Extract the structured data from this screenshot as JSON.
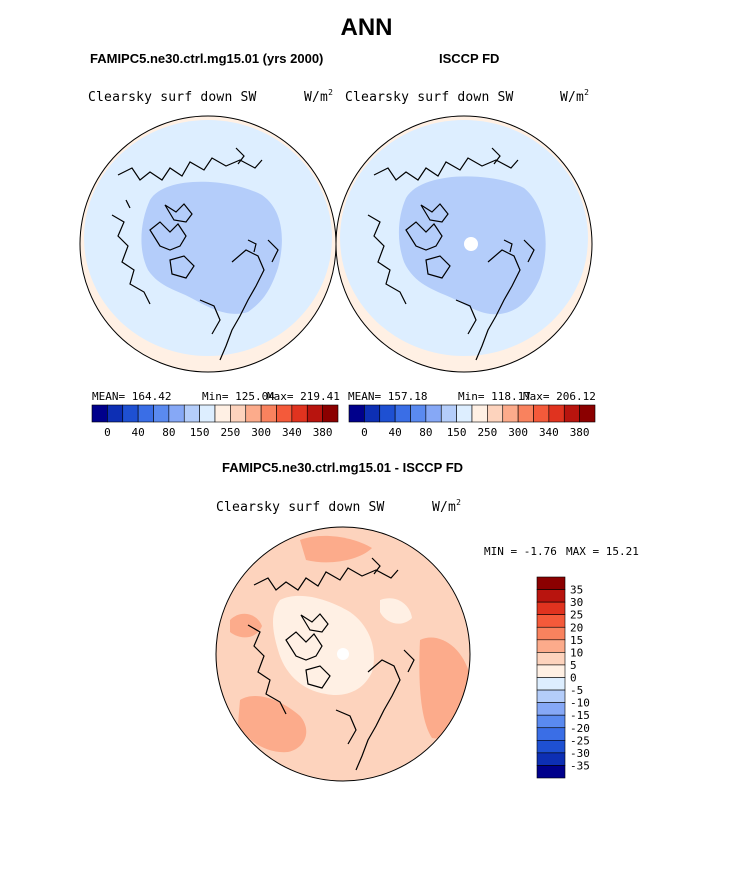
{
  "page": {
    "title": "ANN",
    "diff_title": "FAMIPC5.ne30.ctrl.mg15.01 - ISCCP FD"
  },
  "chart_data": [
    {
      "type": "heatmap",
      "title": "FAMIPC5.ne30.ctrl.mg15.01 (yrs 2000)",
      "variable": "Clearsky surf down SW",
      "units": "W/m",
      "units_exp": "2",
      "projection": "north-polar-stereographic",
      "stats": {
        "mean_label": "MEAN=",
        "mean": "164.42",
        "min_label": "Min=",
        "min": "125.04",
        "max_label": "Max=",
        "max": "219.41"
      },
      "colorbar": {
        "colors": [
          "#00008b",
          "#0d2fb4",
          "#1e50d2",
          "#3a6ee6",
          "#5a8af0",
          "#86a8f6",
          "#b4cdfa",
          "#ddeeff",
          "#fff0e4",
          "#fdd3bd",
          "#fcab8b",
          "#f9825e",
          "#f45a3a",
          "#e0331f",
          "#b8140e",
          "#8b0000"
        ],
        "tick_labels": [
          "0",
          "40",
          "80",
          "150",
          "250",
          "300",
          "340",
          "380"
        ]
      },
      "dominant_fields": [
        {
          "range": "150-250",
          "color": "#ddeeff",
          "region": "mid-latitudes"
        },
        {
          "range": "80-150",
          "color": "#b4cdfa",
          "region": "central Arctic"
        },
        {
          "range": "250-300",
          "color": "#fff0e4",
          "region": "southern rim"
        }
      ]
    },
    {
      "type": "heatmap",
      "title": "ISCCP FD",
      "variable": "Clearsky surf down SW",
      "units": "W/m",
      "units_exp": "2",
      "projection": "north-polar-stereographic",
      "stats": {
        "mean_label": "MEAN=",
        "mean": "157.18",
        "min_label": "Min=",
        "min": "118.17",
        "max_label": "Max=",
        "max": "206.12"
      },
      "colorbar": {
        "colors": [
          "#00008b",
          "#0d2fb4",
          "#1e50d2",
          "#3a6ee6",
          "#5a8af0",
          "#86a8f6",
          "#b4cdfa",
          "#ddeeff",
          "#fff0e4",
          "#fdd3bd",
          "#fcab8b",
          "#f9825e",
          "#f45a3a",
          "#e0331f",
          "#b8140e",
          "#8b0000"
        ],
        "tick_labels": [
          "0",
          "40",
          "80",
          "150",
          "250",
          "300",
          "340",
          "380"
        ]
      }
    },
    {
      "type": "heatmap",
      "title": "FAMIPC5.ne30.ctrl.mg15.01 - ISCCP FD",
      "variable": "Clearsky surf down SW",
      "units": "W/m",
      "units_exp": "2",
      "projection": "north-polar-stereographic",
      "stats": {
        "min_label": "MIN =",
        "min": "-1.76",
        "max_label": "MAX =",
        "max": "15.21"
      },
      "colorbar": {
        "colors": [
          "#8b0000",
          "#b8140e",
          "#e0331f",
          "#f45a3a",
          "#f9825e",
          "#fcab8b",
          "#fdd3bd",
          "#fff0e4",
          "#ddeeff",
          "#b4cdfa",
          "#86a8f6",
          "#5a8af0",
          "#3a6ee6",
          "#1e50d2",
          "#0d2fb4",
          "#00008b"
        ],
        "tick_labels": [
          "35",
          "30",
          "25",
          "20",
          "15",
          "10",
          "5",
          "0",
          "-5",
          "-10",
          "-15",
          "-20",
          "-25",
          "-30",
          "-35"
        ]
      }
    }
  ]
}
